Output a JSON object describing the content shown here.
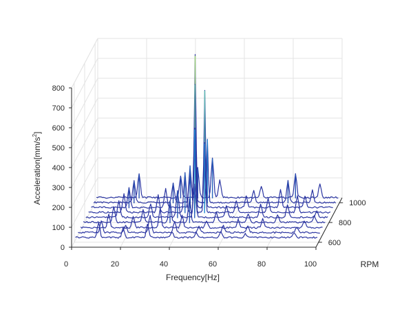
{
  "chart_data": {
    "type": "line",
    "subtype": "3d-waterfall",
    "title": "",
    "xlabel": "Frequency[Hz]",
    "ylabel": "RPM",
    "zlabel_main": "Acceleration[mm/s",
    "zlabel_sup": "2",
    "zlabel_end": "]",
    "xlim": [
      0,
      100
    ],
    "ylim": [
      550,
      1050
    ],
    "zlim": [
      0,
      800
    ],
    "x_ticks": [
      "0",
      "20",
      "40",
      "60",
      "80",
      "100"
    ],
    "y_ticks": [
      "600",
      "800",
      "1000"
    ],
    "z_ticks": [
      "0",
      "100",
      "200",
      "300",
      "400",
      "500",
      "600",
      "700",
      "800"
    ],
    "grid": true,
    "colormap": {
      "low": "#2a2f9e",
      "mid": "#1fa2e0",
      "high": "#b6e26a"
    },
    "series": [
      {
        "rpm": 600,
        "baseline": 20,
        "peaks": [
          [
            10,
            75
          ],
          [
            20,
            45
          ],
          [
            30,
            70
          ],
          [
            40,
            30
          ],
          [
            50,
            25
          ],
          [
            60,
            30
          ],
          [
            70,
            20
          ],
          [
            90,
            25
          ]
        ]
      },
      {
        "rpm": 650,
        "baseline": 20,
        "peaks": [
          [
            10,
            60
          ],
          [
            20,
            40
          ],
          [
            30,
            90
          ],
          [
            40,
            55
          ],
          [
            50,
            30
          ],
          [
            60,
            35
          ],
          [
            70,
            30
          ],
          [
            90,
            30
          ]
        ]
      },
      {
        "rpm": 700,
        "baseline": 20,
        "peaks": [
          [
            12,
            70
          ],
          [
            22,
            55
          ],
          [
            33,
            95
          ],
          [
            42,
            60
          ],
          [
            52,
            35
          ],
          [
            65,
            40
          ],
          [
            75,
            45
          ],
          [
            92,
            35
          ]
        ]
      },
      {
        "rpm": 750,
        "baseline": 22,
        "peaks": [
          [
            13,
            80
          ],
          [
            25,
            60
          ],
          [
            36,
            110
          ],
          [
            44,
            120
          ],
          [
            55,
            50
          ],
          [
            68,
            45
          ],
          [
            80,
            40
          ],
          [
            95,
            30
          ]
        ]
      },
      {
        "rpm": 800,
        "baseline": 22,
        "peaks": [
          [
            14,
            85
          ],
          [
            27,
            70
          ],
          [
            38,
            135
          ],
          [
            45,
            170
          ],
          [
            58,
            55
          ],
          [
            72,
            70
          ],
          [
            83,
            60
          ],
          [
            95,
            35
          ]
        ]
      },
      {
        "rpm": 850,
        "baseline": 22,
        "peaks": [
          [
            15,
            95
          ],
          [
            29,
            85
          ],
          [
            40,
            200
          ],
          [
            44,
            420
          ],
          [
            48,
            350
          ],
          [
            61,
            60
          ],
          [
            74,
            70
          ],
          [
            86,
            80
          ]
        ]
      },
      {
        "rpm": 900,
        "baseline": 22,
        "peaks": [
          [
            16,
            100
          ],
          [
            31,
            95
          ],
          [
            41,
            210
          ],
          [
            43,
            620
          ],
          [
            47,
            590
          ],
          [
            64,
            55
          ],
          [
            78,
            90
          ],
          [
            88,
            55
          ]
        ]
      },
      {
        "rpm": 950,
        "baseline": 22,
        "peaks": [
          [
            17,
            110
          ],
          [
            33,
            100
          ],
          [
            40,
            140
          ],
          [
            42,
            740
          ],
          [
            47,
            320
          ],
          [
            66,
            60
          ],
          [
            80,
            110
          ],
          [
            90,
            60
          ]
        ]
      },
      {
        "rpm": 1000,
        "baseline": 22,
        "peaks": [
          [
            18,
            120
          ],
          [
            35,
            105
          ],
          [
            42,
            150
          ],
          [
            48,
            200
          ],
          [
            51,
            90
          ],
          [
            68,
            55
          ],
          [
            82,
            120
          ],
          [
            92,
            70
          ]
        ]
      }
    ]
  }
}
